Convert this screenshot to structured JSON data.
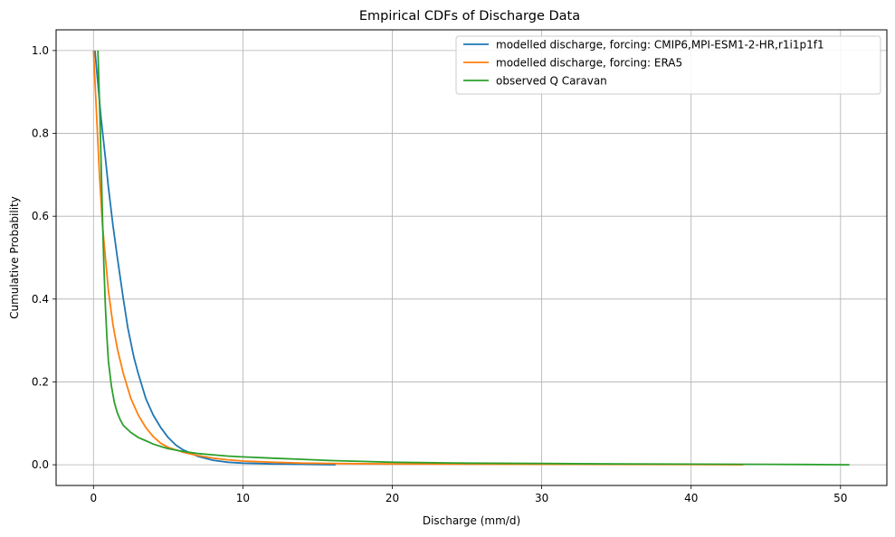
{
  "chart_data": {
    "type": "line",
    "title": "Empirical CDFs of Discharge Data",
    "xlabel": "Discharge (mm/d)",
    "ylabel": "Cumulative Probability",
    "xlim": [
      -2.5,
      53.1
    ],
    "ylim": [
      -0.05,
      1.05
    ],
    "xticks": [
      0,
      10,
      20,
      30,
      40,
      50
    ],
    "yticks": [
      0.0,
      0.2,
      0.4,
      0.6,
      0.8,
      1.0
    ],
    "xtick_labels": [
      "0",
      "10",
      "20",
      "30",
      "40",
      "50"
    ],
    "ytick_labels": [
      "0.0",
      "0.2",
      "0.4",
      "0.6",
      "0.8",
      "1.0"
    ],
    "grid": true,
    "legend_position": "top-right",
    "series": [
      {
        "name": "modelled discharge, forcing: CMIP6,MPI-ESM1-2-HR,r1i1p1f1",
        "color": "#1f77b4",
        "x": [
          0.1,
          0.3,
          0.5,
          0.8,
          1.0,
          1.3,
          1.6,
          2.0,
          2.3,
          2.7,
          3.0,
          3.5,
          4.0,
          4.5,
          5.0,
          5.5,
          6.0,
          7.0,
          8.0,
          9.0,
          10.0,
          11.0,
          12.0,
          13.0,
          14.0,
          15.0,
          16.2
        ],
        "y": [
          1.0,
          0.92,
          0.84,
          0.74,
          0.67,
          0.58,
          0.5,
          0.4,
          0.33,
          0.26,
          0.22,
          0.16,
          0.12,
          0.09,
          0.066,
          0.048,
          0.036,
          0.02,
          0.011,
          0.006,
          0.004,
          0.003,
          0.002,
          0.0015,
          0.001,
          0.0006,
          0.0
        ]
      },
      {
        "name": "modelled discharge, forcing: ERA5",
        "color": "#ff7f0e",
        "x": [
          0.0,
          0.2,
          0.4,
          0.6,
          0.8,
          1.0,
          1.3,
          1.6,
          2.0,
          2.5,
          3.0,
          3.5,
          4.0,
          4.5,
          5.0,
          6.0,
          7.0,
          8.0,
          9.0,
          10.0,
          12.0,
          14.0,
          16.0,
          20.0,
          25.0,
          30.0,
          35.0,
          40.0,
          43.5
        ],
        "y": [
          1.0,
          0.85,
          0.7,
          0.58,
          0.5,
          0.42,
          0.34,
          0.28,
          0.22,
          0.16,
          0.12,
          0.09,
          0.068,
          0.052,
          0.042,
          0.03,
          0.022,
          0.016,
          0.012,
          0.009,
          0.006,
          0.004,
          0.003,
          0.002,
          0.0015,
          0.001,
          0.0008,
          0.0004,
          0.0
        ]
      },
      {
        "name": "observed Q Caravan",
        "color": "#2ca02c",
        "x": [
          0.3,
          0.4,
          0.5,
          0.6,
          0.7,
          0.8,
          0.9,
          1.0,
          1.2,
          1.4,
          1.6,
          1.8,
          2.0,
          2.5,
          3.0,
          3.5,
          4.0,
          4.5,
          5.0,
          6.0,
          7.0,
          8.0,
          9.0,
          10.0,
          12.0,
          14.0,
          16.0,
          18.0,
          20.0,
          25.0,
          30.0,
          35.0,
          40.0,
          45.0,
          50.6
        ],
        "y": [
          1.0,
          0.88,
          0.75,
          0.6,
          0.48,
          0.38,
          0.31,
          0.25,
          0.19,
          0.15,
          0.125,
          0.108,
          0.095,
          0.078,
          0.066,
          0.058,
          0.05,
          0.044,
          0.039,
          0.032,
          0.027,
          0.024,
          0.021,
          0.019,
          0.016,
          0.013,
          0.01,
          0.008,
          0.006,
          0.004,
          0.003,
          0.002,
          0.0015,
          0.001,
          0.0
        ]
      }
    ]
  }
}
